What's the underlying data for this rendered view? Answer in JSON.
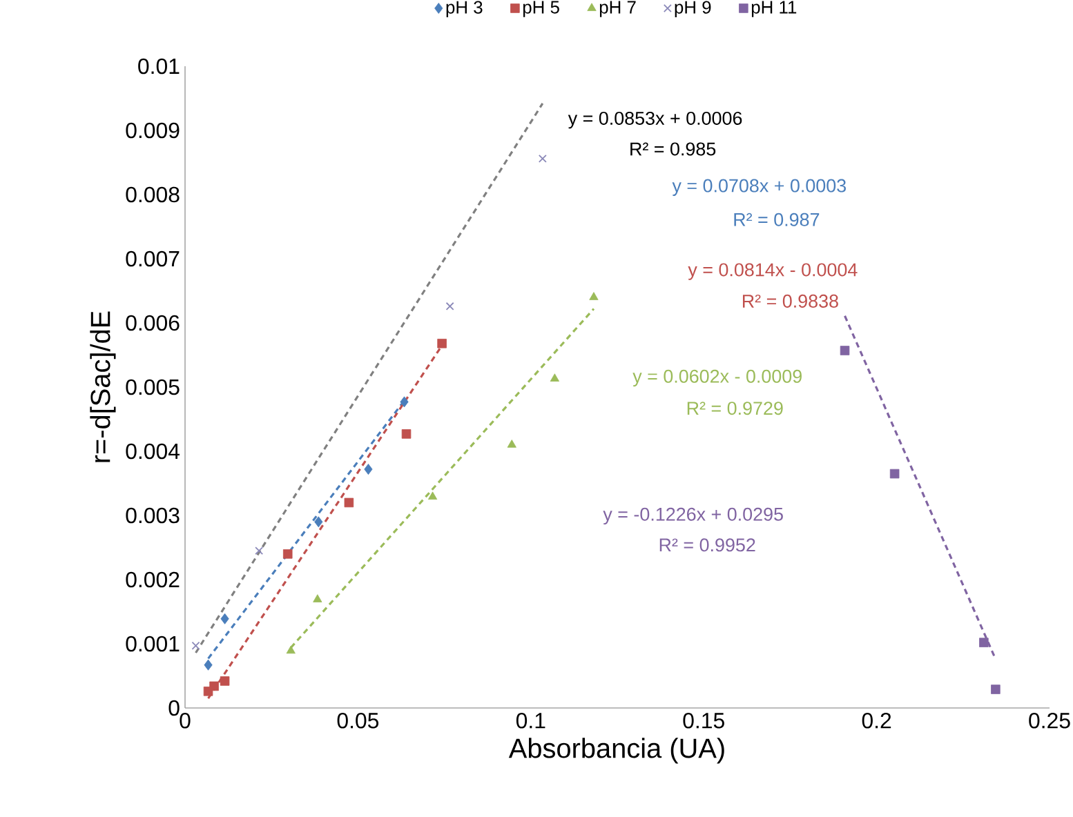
{
  "chart_data": {
    "type": "scatter",
    "xlabel": "Absorbancia (UA)",
    "ylabel": "r=-d[Sac]/dE",
    "xlim": [
      0,
      0.25
    ],
    "xticks": [
      0,
      0.05,
      0.1,
      0.15,
      0.2,
      0.25
    ],
    "ylim": [
      0,
      0.01
    ],
    "yticks": [
      0,
      0.001,
      0.002,
      0.003,
      0.004,
      0.005,
      0.006,
      0.007,
      0.008,
      0.009,
      0.01
    ],
    "grid": false,
    "legend": "top",
    "series": [
      {
        "name": "pH 3",
        "color": "#4a7ebb",
        "marker": "diamond",
        "x": [
          0.0067,
          0.0115,
          0.0386,
          0.053,
          0.0634
        ],
        "values": [
          0.00067,
          0.00139,
          0.0029,
          0.00372,
          0.00477
        ]
      },
      {
        "name": "pH 5",
        "color": "#c0504d",
        "marker": "square",
        "x": [
          0.0067,
          0.0084,
          0.0115,
          0.0297,
          0.0474,
          0.064,
          0.0743
        ],
        "values": [
          0.00026,
          0.00034,
          0.00042,
          0.0024,
          0.0032,
          0.00427,
          0.00568
        ]
      },
      {
        "name": "pH 7",
        "color": "#9bbb59",
        "marker": "triangle",
        "x": [
          0.0306,
          0.0383,
          0.0716,
          0.0945,
          0.1069,
          0.1182
        ],
        "values": [
          0.00089,
          0.00169,
          0.00329,
          0.0041,
          0.00513,
          0.0064
        ]
      },
      {
        "name": "pH 9",
        "color": "#8a88b8",
        "marker": "cross",
        "x": [
          0.0031,
          0.0214,
          0.0766,
          0.1034
        ],
        "values": [
          0.00097,
          0.00245,
          0.00626,
          0.00856
        ]
      },
      {
        "name": "pH 11",
        "color": "#8064a2",
        "marker": "square",
        "x": [
          0.1908,
          0.2052,
          0.231,
          0.2344
        ],
        "values": [
          0.00557,
          0.00365,
          0.00102,
          0.00029
        ]
      },
      {
        "type": "line",
        "color": "#4a7ebb",
        "line_style": "dashed",
        "marker": "none",
        "x": [
          0.0067,
          0.0634
        ],
        "values": [
          0.00077,
          0.00479
        ]
      },
      {
        "type": "line",
        "color": "#c0504d",
        "line_style": "dashed",
        "marker": "none",
        "x": [
          0.0067,
          0.0743
        ],
        "values": [
          0.00015,
          0.00565
        ]
      },
      {
        "type": "line",
        "color": "#9bbb59",
        "line_style": "dashed",
        "marker": "none",
        "x": [
          0.0306,
          0.1182
        ],
        "values": [
          0.00094,
          0.00622
        ]
      },
      {
        "type": "line",
        "color": "#808080",
        "line_style": "dashed",
        "marker": "none",
        "x": [
          0.0031,
          0.1034
        ],
        "values": [
          0.00086,
          0.00942
        ]
      },
      {
        "type": "line",
        "color": "#8064a2",
        "line_style": "dashed",
        "marker": "none",
        "x": [
          0.1908,
          0.2344
        ],
        "values": [
          0.00611,
          0.00076
        ]
      }
    ],
    "annotations": [
      "y = 0.0853x + 0.0006",
      "R² = 0.985",
      "y = 0.0708x + 0.0003",
      "R² = 0.987",
      "y = 0.0814x - 0.0004",
      "R² = 0.9838",
      "y = 0.0602x - 0.0009",
      "R² = 0.9729",
      "y = -0.1226x + 0.0295",
      "R² = 0.9952"
    ]
  }
}
